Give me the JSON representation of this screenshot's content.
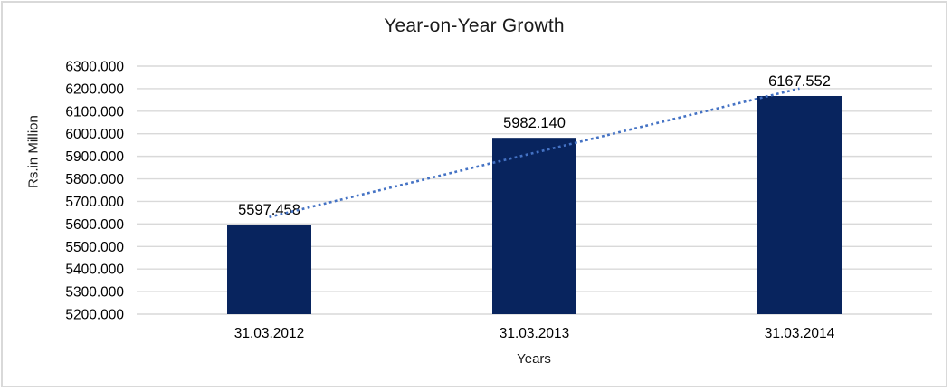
{
  "chart_data": {
    "type": "bar",
    "title": "Year-on-Year Growth",
    "xlabel": "Years",
    "ylabel": "Rs.in Million",
    "categories": [
      "31.03.2012",
      "31.03.2013",
      "31.03.2014"
    ],
    "values": [
      5597.458,
      5982.14,
      6167.552
    ],
    "data_labels": [
      "5597.458",
      "5982.140",
      "6167.552"
    ],
    "ylim": [
      5200,
      6300
    ],
    "ytick_step": 100,
    "ytick_labels": [
      "5200.000",
      "5300.000",
      "5400.000",
      "5500.000",
      "5600.000",
      "5700.000",
      "5800.000",
      "5900.000",
      "6000.000",
      "6100.000",
      "6200.000",
      "6300.000"
    ],
    "grid": "horizontal",
    "legend": "none",
    "trendline": {
      "type": "linear",
      "line_style": "dotted",
      "color": "#4472c4",
      "span": "first-to-last-category"
    },
    "colors": {
      "bar": "#08245e",
      "gridline": "#d9d9d9",
      "border": "#d9d9d9",
      "text": "#000000"
    }
  }
}
